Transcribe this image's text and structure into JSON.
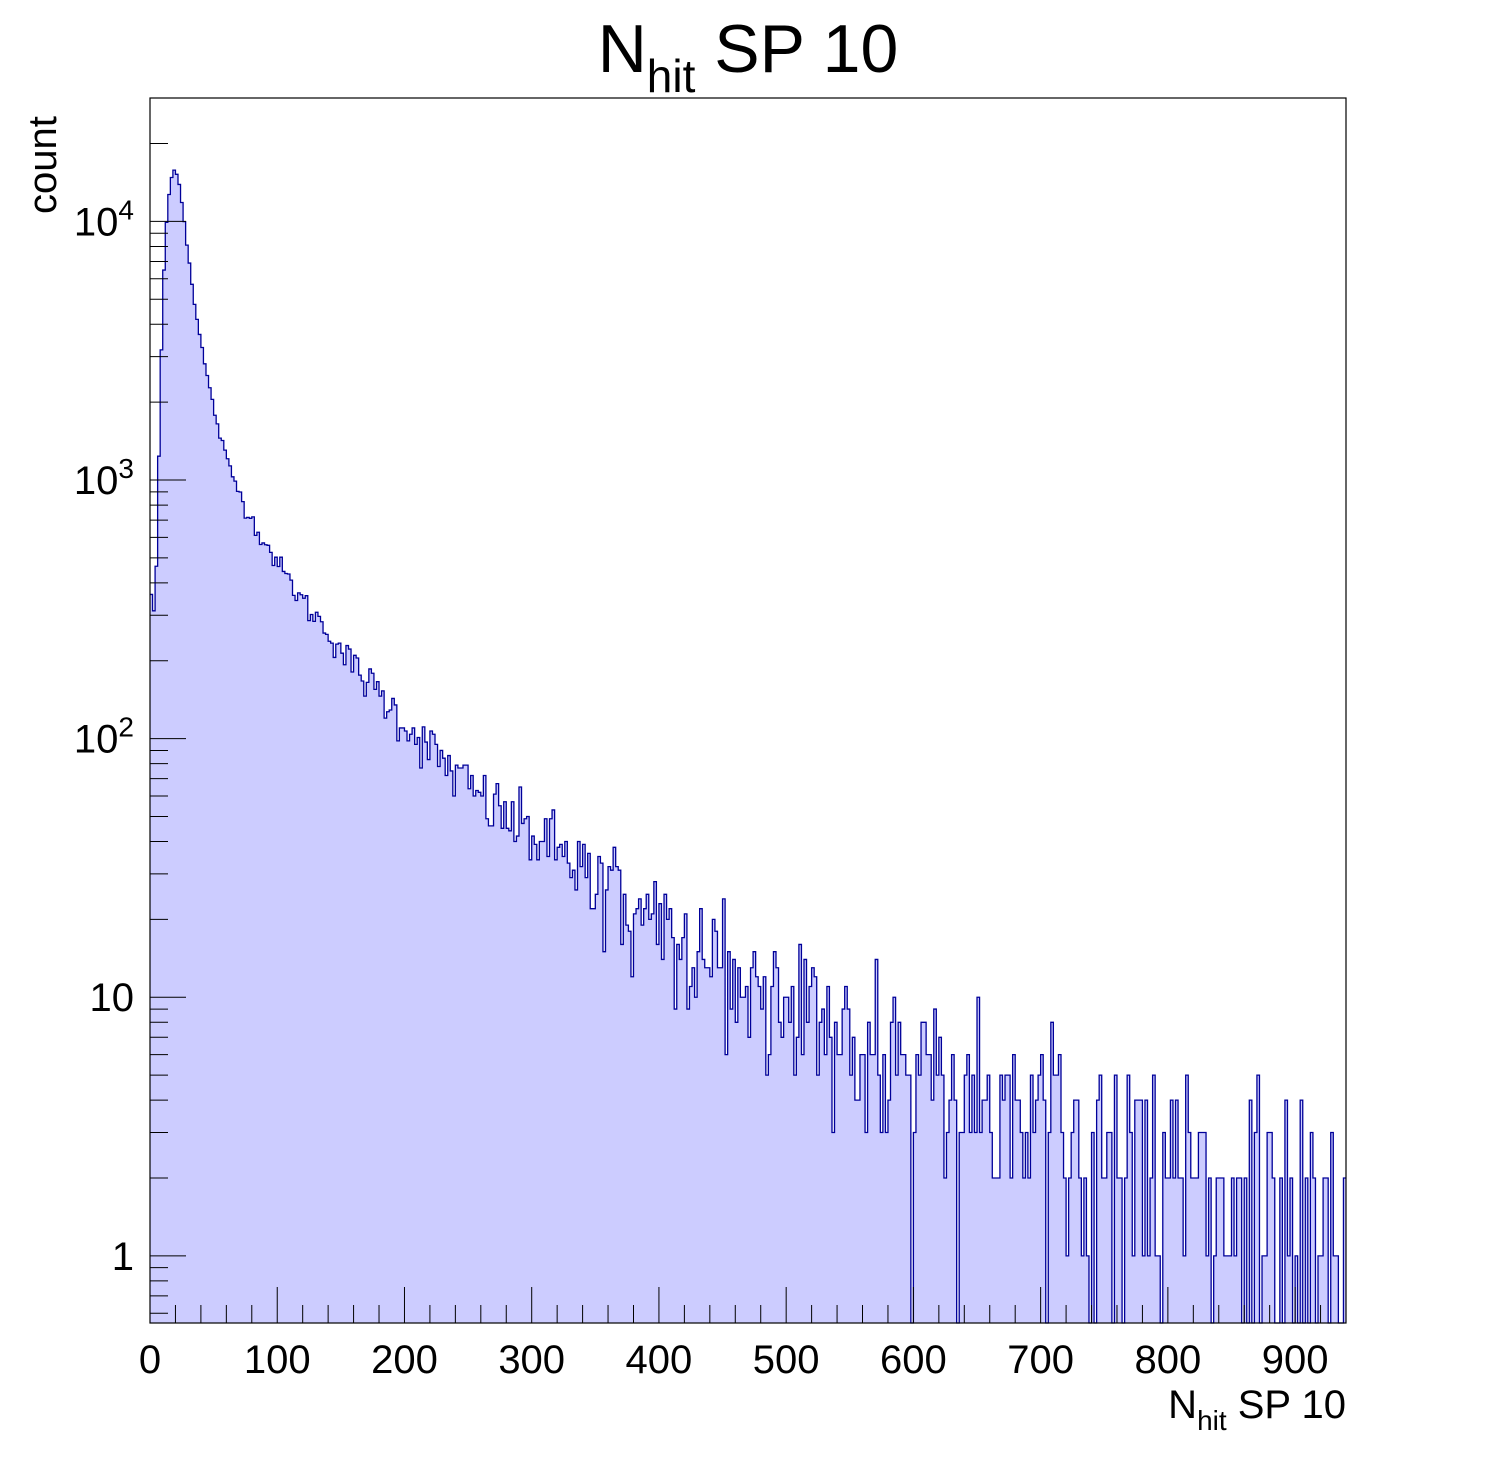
{
  "chart_data": {
    "type": "bar",
    "style": "step-histogram",
    "title": {
      "main": "N",
      "sub": "hit",
      "rest": " SP 10"
    },
    "xlabel": {
      "main": "N",
      "sub": "hit",
      "rest": " SP 10"
    },
    "ylabel": "count",
    "xlim": [
      0,
      940
    ],
    "ylim": [
      0.55,
      30000
    ],
    "yscale": "log",
    "bin_width": 2,
    "x_ticks": [
      {
        "value": 0,
        "label": "0"
      },
      {
        "value": 100,
        "label": "100"
      },
      {
        "value": 200,
        "label": "200"
      },
      {
        "value": 300,
        "label": "300"
      },
      {
        "value": 400,
        "label": "400"
      },
      {
        "value": 500,
        "label": "500"
      },
      {
        "value": 600,
        "label": "600"
      },
      {
        "value": 700,
        "label": "700"
      },
      {
        "value": 800,
        "label": "800"
      },
      {
        "value": 900,
        "label": "900"
      }
    ],
    "y_ticks": [
      {
        "value": 1,
        "base": "1",
        "exp": ""
      },
      {
        "value": 10,
        "base": "10",
        "exp": ""
      },
      {
        "value": 100,
        "base": "10",
        "exp": "2"
      },
      {
        "value": 1000,
        "base": "10",
        "exp": "3"
      },
      {
        "value": 10000,
        "base": "10",
        "exp": "4"
      }
    ],
    "grid": false,
    "legend": "none",
    "fill_color": "#ccccff",
    "line_color": "#000099",
    "profile": [
      [
        0,
        500
      ],
      [
        2,
        270
      ],
      [
        4,
        320
      ],
      [
        6,
        700
      ],
      [
        8,
        2000
      ],
      [
        10,
        5000
      ],
      [
        12,
        8500
      ],
      [
        14,
        11500
      ],
      [
        16,
        14000
      ],
      [
        18,
        15500
      ],
      [
        20,
        16000
      ],
      [
        22,
        15000
      ],
      [
        24,
        13000
      ],
      [
        26,
        11000
      ],
      [
        28,
        9000
      ],
      [
        30,
        7500
      ],
      [
        32,
        6300
      ],
      [
        34,
        5300
      ],
      [
        36,
        4500
      ],
      [
        40,
        3400
      ],
      [
        45,
        2500
      ],
      [
        50,
        1900
      ],
      [
        55,
        1500
      ],
      [
        60,
        1200
      ],
      [
        70,
        900
      ],
      [
        80,
        700
      ],
      [
        90,
        580
      ],
      [
        100,
        480
      ],
      [
        120,
        340
      ],
      [
        140,
        260
      ],
      [
        160,
        190
      ],
      [
        180,
        150
      ],
      [
        200,
        115
      ],
      [
        220,
        92
      ],
      [
        250,
        65
      ],
      [
        280,
        50
      ],
      [
        300,
        43
      ],
      [
        330,
        35
      ],
      [
        350,
        29
      ],
      [
        380,
        24
      ],
      [
        400,
        20
      ],
      [
        430,
        16
      ],
      [
        450,
        13.5
      ],
      [
        480,
        11
      ],
      [
        500,
        10
      ],
      [
        530,
        8
      ],
      [
        550,
        6.8
      ],
      [
        580,
        6
      ],
      [
        600,
        5.4
      ],
      [
        630,
        4.6
      ],
      [
        650,
        4
      ],
      [
        680,
        3.5
      ],
      [
        700,
        3
      ],
      [
        730,
        2.6
      ],
      [
        750,
        2.2
      ],
      [
        780,
        2
      ],
      [
        800,
        1.8
      ],
      [
        830,
        1.6
      ],
      [
        850,
        1.4
      ],
      [
        880,
        1.2
      ],
      [
        900,
        1
      ],
      [
        940,
        0.8
      ]
    ]
  },
  "axis_colors": {
    "frame": "#000000",
    "tick": "#000000"
  }
}
